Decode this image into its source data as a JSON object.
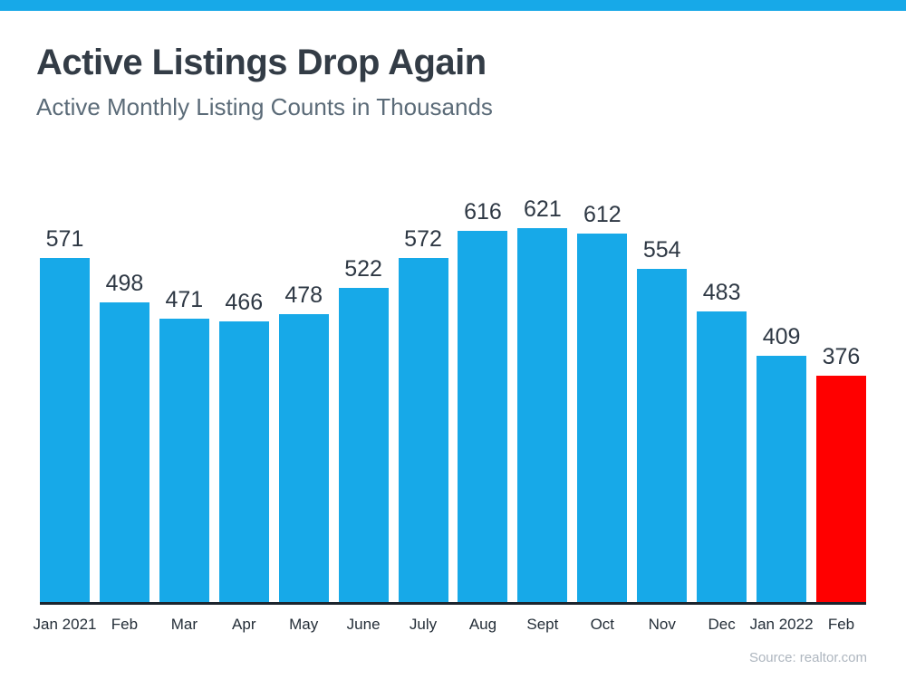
{
  "page": {
    "title": "Active Listings Drop Again",
    "subtitle": "Active Monthly Listing Counts in Thousands",
    "source": "Source: realtor.com"
  },
  "colors": {
    "accent_blue": "#17A9E8",
    "highlight_red": "#FF0000",
    "axis": "#1C252E",
    "title_text": "#333C46",
    "subtitle_text": "#5B6B78",
    "value_text": "#2E3844",
    "source_text": "#AEB6BF"
  },
  "chart_data": {
    "type": "bar",
    "title": "Active Listings Drop Again",
    "subtitle": "Active Monthly Listing Counts in Thousands",
    "categories": [
      "Jan 2021",
      "Feb",
      "Mar",
      "Apr",
      "May",
      "June",
      "July",
      "Aug",
      "Sept",
      "Oct",
      "Nov",
      "Dec",
      "Jan 2022",
      "Feb"
    ],
    "values": [
      571,
      498,
      471,
      466,
      478,
      522,
      572,
      616,
      621,
      612,
      554,
      483,
      409,
      376
    ],
    "value_labels": [
      "571",
      "498",
      "471",
      "466",
      "478",
      "522",
      "572",
      "616",
      "621",
      "612",
      "554",
      "483",
      "409",
      "376"
    ],
    "highlight_index": 13,
    "bar_color": "#17A9E8",
    "highlight_color": "#FF0000",
    "ylim": [
      0,
      621
    ],
    "grid": false,
    "legend": false,
    "source": "Source: realtor.com"
  }
}
